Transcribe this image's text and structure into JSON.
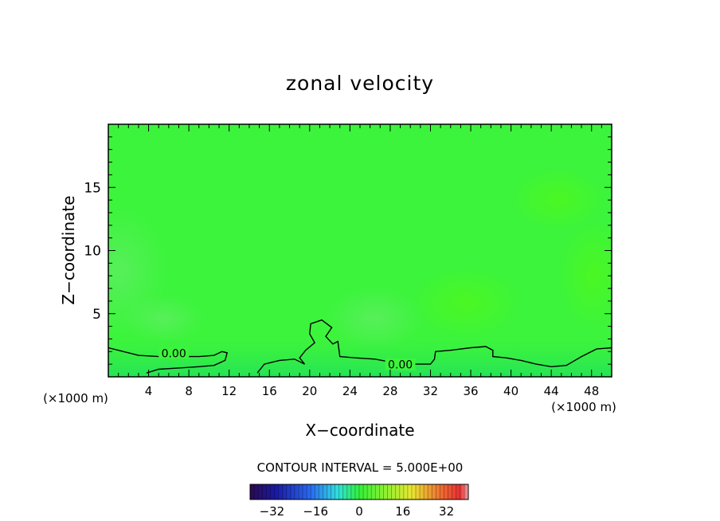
{
  "chart_data": {
    "type": "heatmap",
    "title": "zonal velocity",
    "xlabel": "X−coordinate",
    "ylabel": "Z−coordinate",
    "x_units_left": "(×1000 m)",
    "x_units_right": "(×1000 m)",
    "xlim": [
      0,
      50
    ],
    "ylim": [
      0,
      20
    ],
    "x_ticks": [
      4,
      8,
      12,
      16,
      20,
      24,
      28,
      32,
      36,
      40,
      44,
      48
    ],
    "x_tick_labels": [
      "4",
      "8",
      "12",
      "16",
      "20",
      "24",
      "28",
      "32",
      "36",
      "40",
      "44",
      "48"
    ],
    "y_ticks": [
      5,
      10,
      15
    ],
    "y_tick_labels": [
      "5",
      "10",
      "15"
    ],
    "contour_labels": [
      {
        "text": "0.00",
        "x": 6.5,
        "y": 1.8
      },
      {
        "text": "0.00",
        "x": 29.0,
        "y": 0.9
      }
    ],
    "contour_zero": [
      [
        [
          0,
          2.3
        ],
        [
          1.5,
          2.0
        ],
        [
          3,
          1.7
        ],
        [
          5,
          1.6
        ],
        [
          7,
          1.6
        ],
        [
          9,
          1.6
        ],
        [
          10.5,
          1.7
        ],
        [
          11.3,
          2.0
        ],
        [
          11.8,
          1.9
        ],
        [
          11.6,
          1.3
        ],
        [
          10.5,
          0.9
        ],
        [
          9,
          0.8
        ],
        [
          7,
          0.7
        ],
        [
          5,
          0.6
        ],
        [
          3.8,
          0.3
        ]
      ],
      [
        [
          14.8,
          0.3
        ],
        [
          15.5,
          1.0
        ],
        [
          17,
          1.3
        ],
        [
          18.5,
          1.4
        ],
        [
          19.5,
          1.0
        ],
        [
          19.0,
          1.5
        ],
        [
          19.6,
          2.1
        ],
        [
          20.5,
          2.7
        ],
        [
          20.0,
          3.4
        ],
        [
          20.1,
          4.2
        ],
        [
          21.2,
          4.5
        ],
        [
          22.2,
          3.9
        ],
        [
          21.6,
          3.2
        ],
        [
          22.3,
          2.6
        ],
        [
          22.8,
          2.8
        ],
        [
          23.0,
          1.6
        ],
        [
          24.5,
          1.5
        ],
        [
          26.5,
          1.4
        ],
        [
          28.5,
          1.1
        ],
        [
          30.5,
          1.0
        ],
        [
          32,
          1.0
        ],
        [
          32.4,
          1.4
        ],
        [
          32.5,
          2.0
        ],
        [
          34,
          2.1
        ],
        [
          36,
          2.3
        ],
        [
          37.5,
          2.4
        ],
        [
          38.2,
          2.1
        ],
        [
          38.2,
          1.6
        ],
        [
          39.5,
          1.5
        ],
        [
          41,
          1.3
        ],
        [
          42.5,
          1.0
        ],
        [
          44,
          0.8
        ],
        [
          45.5,
          0.9
        ],
        [
          47,
          1.6
        ],
        [
          48.5,
          2.2
        ],
        [
          50,
          2.3
        ]
      ]
    ],
    "colorbar": {
      "label": "CONTOUR INTERVAL = 5.000E+00",
      "ticks": [
        -32,
        -16,
        0,
        16,
        32
      ],
      "tick_labels": [
        "−32",
        "−16",
        "0",
        "16",
        "32"
      ],
      "vmin": -40,
      "vmax": 40,
      "field_value_typical": 0
    },
    "colors": {
      "field": "#3cf43c",
      "field_light": "#52f055",
      "field_dark": "#30f02e",
      "field_bright": "#44f820",
      "contour": "#000000"
    }
  }
}
